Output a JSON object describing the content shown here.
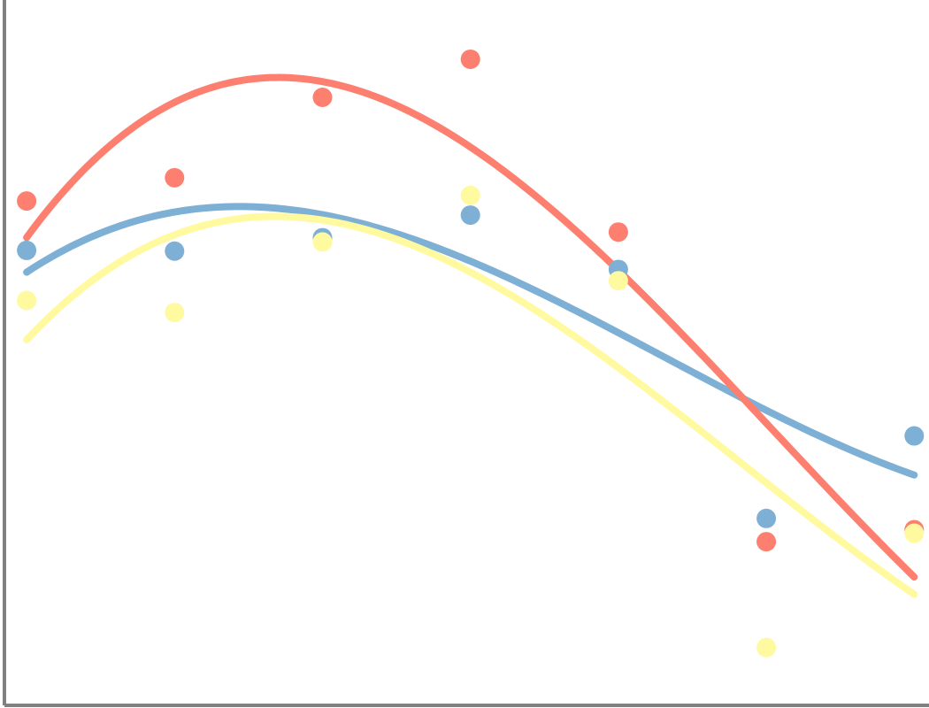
{
  "chart_data": {
    "type": "scatter",
    "title": "",
    "xlabel": "",
    "ylabel": "",
    "x": [
      0,
      1,
      2,
      3,
      4,
      5,
      6
    ],
    "xlim": [
      -0.18,
      6.1
    ],
    "ylim": [
      0,
      100
    ],
    "grid": false,
    "legend": "none",
    "series": [
      {
        "color": "#7eb0d5",
        "values": [
          64.5,
          64.4,
          66.3,
          69.5,
          61.8,
          26.5,
          38.2
        ],
        "smooth_fit": true
      },
      {
        "color": "#fd7f6f",
        "values": [
          71.5,
          74.8,
          86.2,
          91.6,
          67.1,
          23.2,
          24.9
        ],
        "smooth_fit": true
      },
      {
        "color": "#fffaa0",
        "values": [
          57.4,
          55.7,
          65.7,
          72.3,
          60.2,
          8.2,
          24.4
        ],
        "smooth_fit": true
      }
    ]
  }
}
